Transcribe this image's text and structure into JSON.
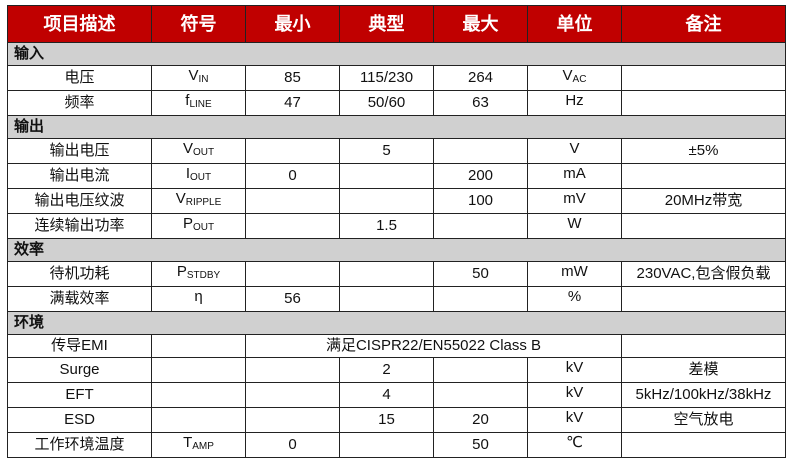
{
  "headers": [
    "项目描述",
    "符号",
    "最小",
    "典型",
    "最大",
    "单位",
    "备注"
  ],
  "sections": [
    {
      "title": "输入",
      "rows": [
        {
          "name": "电压",
          "sym": "V",
          "sub": "IN",
          "min": "85",
          "typ": "115/230",
          "max": "264",
          "unit": "V",
          "unit_sub": "AC",
          "note": ""
        },
        {
          "name": "频率",
          "sym": "f",
          "sub": "LINE",
          "min": "47",
          "typ": "50/60",
          "max": "63",
          "unit": "Hz",
          "unit_sub": "",
          "note": ""
        }
      ]
    },
    {
      "title": "输出",
      "rows": [
        {
          "name": "输出电压",
          "sym": "V",
          "sub": "OUT",
          "min": "",
          "typ": "5",
          "max": "",
          "unit": "V",
          "unit_sub": "",
          "note": "±5%"
        },
        {
          "name": "输出电流",
          "sym": "I",
          "sub": "OUT",
          "min": "0",
          "typ": "",
          "max": "200",
          "unit": "mA",
          "unit_sub": "",
          "note": ""
        },
        {
          "name": "输出电压纹波",
          "sym": "V",
          "sub": "RIPPLE",
          "min": "",
          "typ": "",
          "max": "100",
          "unit": "mV",
          "unit_sub": "",
          "note": "20MHz带宽"
        },
        {
          "name": "连续输出功率",
          "sym": "P",
          "sub": "OUT",
          "min": "",
          "typ": "1.5",
          "max": "",
          "unit": "W",
          "unit_sub": "",
          "note": ""
        }
      ]
    },
    {
      "title": "效率",
      "rows": [
        {
          "name": "待机功耗",
          "sym": "P",
          "sub": "STDBY",
          "min": "",
          "typ": "",
          "max": "50",
          "unit": "mW",
          "unit_sub": "",
          "note": "230VAC,包含假负载"
        },
        {
          "name": "满载效率",
          "sym": "η",
          "sub": "",
          "min": "56",
          "typ": "",
          "max": "",
          "unit": "%",
          "unit_sub": "",
          "note": ""
        }
      ]
    },
    {
      "title": "环境",
      "rows": [
        {
          "name": "传导EMI",
          "span": "满足CISPR22/EN55022 Class B",
          "note": ""
        },
        {
          "name": "Surge",
          "sym": "",
          "sub": "",
          "min": "",
          "typ": "2",
          "max": "",
          "unit": "kV",
          "unit_sub": "",
          "note": "差模"
        },
        {
          "name": "EFT",
          "sym": "",
          "sub": "",
          "min": "",
          "typ": "4",
          "max": "",
          "unit": "kV",
          "unit_sub": "",
          "note": "5kHz/100kHz/38kHz"
        },
        {
          "name": "ESD",
          "sym": "",
          "sub": "",
          "min": "",
          "typ": "15",
          "max": "20",
          "unit": "kV",
          "unit_sub": "",
          "note": "空气放电"
        },
        {
          "name": "工作环境温度",
          "sym": "T",
          "sub": "AMP",
          "min": "0",
          "typ": "",
          "max": "50",
          "unit": "℃",
          "unit_sub": "",
          "note": ""
        }
      ]
    }
  ]
}
